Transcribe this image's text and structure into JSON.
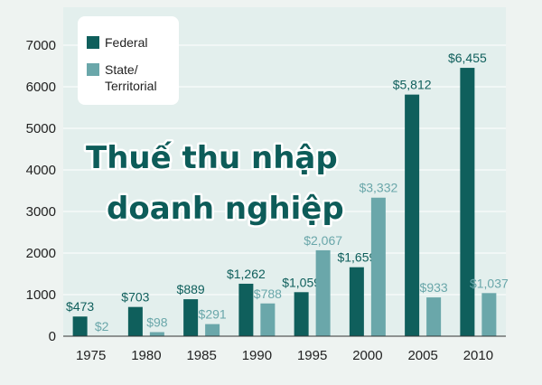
{
  "overlay_title": [
    "Thuế thu nhập",
    "doanh nghiệp"
  ],
  "colors": {
    "federal": "#0f5f5c",
    "state": "#6aa7aa",
    "background": "#eef3f1",
    "plot": "#e3efed",
    "grid": "#ffffff"
  },
  "chart_data": {
    "type": "bar",
    "categories": [
      "1975",
      "1980",
      "1985",
      "1990",
      "1995",
      "2000",
      "2005",
      "2010"
    ],
    "series": [
      {
        "name": "Federal",
        "values": [
          473,
          703,
          889,
          1262,
          1059,
          1659,
          5812,
          6455
        ],
        "labels": [
          "$473",
          "$703",
          "$889",
          "$1,262",
          "$1,059",
          "$1,659",
          "$5,812",
          "$6,455"
        ]
      },
      {
        "name": "State/ Territorial",
        "values": [
          2,
          98,
          291,
          788,
          2067,
          3332,
          933,
          1037
        ],
        "labels": [
          "$2",
          "$98",
          "$291",
          "$788",
          "$2,067",
          "$3,332",
          "$933",
          "$1,037"
        ]
      }
    ],
    "legend_lines": [
      [
        "Federal"
      ],
      [
        "State/",
        "Territorial"
      ]
    ],
    "yticks": [
      "0",
      "1000",
      "2000",
      "3000",
      "4000",
      "5000",
      "6000",
      "7000"
    ],
    "ylim": [
      0,
      7000
    ],
    "grid": true,
    "legend_position": "top-left"
  }
}
